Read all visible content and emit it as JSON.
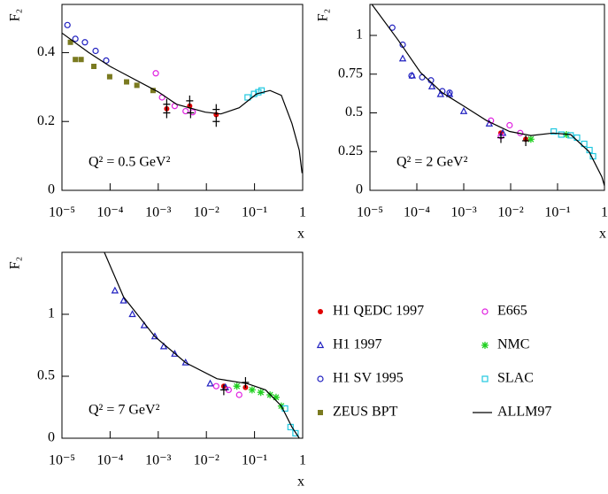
{
  "chart_data": [
    {
      "type": "scatter",
      "log_x": true,
      "xlim": [
        1e-05,
        1
      ],
      "ylim": [
        0,
        0.54
      ],
      "xticks": [
        {
          "value": 1e-05,
          "label": "10⁻⁵"
        },
        {
          "value": 0.0001,
          "label": "10⁻⁴"
        },
        {
          "value": 0.001,
          "label": "10⁻³"
        },
        {
          "value": 0.01,
          "label": "10⁻²"
        },
        {
          "value": 0.1,
          "label": "10⁻¹"
        },
        1
      ],
      "yticks": [
        0,
        0.2,
        0.4
      ],
      "x_label": "x",
      "y_label": "F₂",
      "annotation": "Q² = 0.5 GeV²",
      "series": [
        {
          "color": "#e00000",
          "marker": "circle-filled",
          "x": [
            0.0015,
            0.0045,
            0.016
          ],
          "values": [
            0.237,
            0.245,
            0.22
          ]
        },
        {
          "color": "#2020c0",
          "marker": "triangle-open",
          "x": [],
          "values": []
        },
        {
          "color": "#2020c0",
          "marker": "circle-open",
          "x": [
            1.3e-05,
            1.9e-05,
            3e-05,
            5e-05,
            8.3e-05
          ],
          "values": [
            0.48,
            0.44,
            0.43,
            0.405,
            0.377
          ]
        },
        {
          "color": "#7a7a20",
          "marker": "square-filled",
          "x": [
            1.5e-05,
            1.9e-05,
            2.5e-05,
            4.6e-05,
            9.8e-05,
            0.00022,
            0.00036,
            0.00078
          ],
          "values": [
            0.43,
            0.38,
            0.38,
            0.36,
            0.33,
            0.315,
            0.305,
            0.29
          ]
        },
        {
          "color": "#e020e0",
          "marker": "circle-open",
          "x": [
            0.00089,
            0.0012,
            0.0022,
            0.0037,
            0.0052
          ],
          "values": [
            0.34,
            0.27,
            0.245,
            0.23,
            0.227
          ]
        },
        {
          "color": "#20d020",
          "marker": "star",
          "x": [],
          "values": []
        },
        {
          "color": "#20c8e0",
          "marker": "square-open",
          "x": [
            0.072,
            0.098,
            0.12,
            0.14
          ],
          "values": [
            0.27,
            0.28,
            0.285,
            0.29
          ]
        },
        {
          "color": "#000000",
          "marker": "line",
          "x": [
            1e-05,
            3.6e-05,
            0.0001,
            0.001,
            0.0024,
            0.0095,
            0.02,
            0.048,
            0.11,
            0.21,
            0.36,
            0.6,
            0.85,
            0.97
          ],
          "values": [
            0.457,
            0.4,
            0.36,
            0.286,
            0.25,
            0.227,
            0.222,
            0.24,
            0.28,
            0.29,
            0.276,
            0.194,
            0.116,
            0.05
          ]
        },
        {
          "color": "#000000",
          "marker": "cross",
          "x": [
            0.0015,
            0.0015,
            0.0045,
            0.0047,
            0.016,
            0.016
          ],
          "values": [
            0.25,
            0.225,
            0.26,
            0.225,
            0.235,
            0.2
          ]
        }
      ]
    },
    {
      "type": "scatter",
      "log_x": true,
      "xlim": [
        1e-05,
        1
      ],
      "ylim": [
        0,
        1.2
      ],
      "xticks": [
        {
          "value": 1e-05,
          "label": "10⁻⁵"
        },
        {
          "value": 0.0001,
          "label": "10⁻⁴"
        },
        {
          "value": 0.001,
          "label": "10⁻³"
        },
        {
          "value": 0.01,
          "label": "10⁻²"
        },
        {
          "value": 0.1,
          "label": "10⁻¹"
        },
        1
      ],
      "yticks": [
        0,
        0.25,
        0.5,
        0.75,
        1
      ],
      "x_label": "x",
      "y_label": "F₂",
      "annotation": "Q² = 2 GeV²",
      "series": [
        {
          "color": "#e00000",
          "marker": "circle-filled",
          "x": [
            0.0062,
            0.021
          ],
          "values": [
            0.37,
            0.33
          ]
        },
        {
          "color": "#2020c0",
          "marker": "triangle-open",
          "x": [
            5e-05,
            8e-05,
            0.00021,
            0.00032,
            0.0005,
            0.001,
            0.0035,
            0.0068
          ],
          "values": [
            0.85,
            0.74,
            0.67,
            0.62,
            0.62,
            0.51,
            0.43,
            0.37
          ]
        },
        {
          "color": "#2020c0",
          "marker": "circle-open",
          "x": [
            3e-05,
            5e-05,
            7.7e-05,
            0.00013,
            0.0002,
            0.00035,
            0.0005
          ],
          "values": [
            1.05,
            0.94,
            0.74,
            0.73,
            0.71,
            0.64,
            0.63
          ]
        },
        {
          "color": "#7a7a20",
          "marker": "square-filled",
          "x": [],
          "values": []
        },
        {
          "color": "#e020e0",
          "marker": "circle-open",
          "x": [
            0.0038,
            0.0062,
            0.0095,
            0.016
          ],
          "values": [
            0.45,
            0.35,
            0.42,
            0.37
          ]
        },
        {
          "color": "#20d020",
          "marker": "star",
          "x": [
            0.027,
            0.155
          ],
          "values": [
            0.33,
            0.36
          ]
        },
        {
          "color": "#20c8e0",
          "marker": "square-open",
          "x": [
            0.083,
            0.12,
            0.19,
            0.26,
            0.37,
            0.48,
            0.57
          ],
          "values": [
            0.38,
            0.36,
            0.355,
            0.34,
            0.3,
            0.26,
            0.22
          ]
        },
        {
          "color": "#000000",
          "marker": "line",
          "x": [
            1.1e-05,
            4e-05,
            0.00012,
            0.00035,
            0.00105,
            0.0031,
            0.0095,
            0.027,
            0.08,
            0.19,
            0.47,
            0.88,
            1
          ],
          "values": [
            1.2,
            0.97,
            0.76,
            0.63,
            0.54,
            0.45,
            0.38,
            0.354,
            0.37,
            0.36,
            0.25,
            0.086,
            0.03
          ]
        },
        {
          "color": "#000000",
          "marker": "cross",
          "x": [
            0.0062,
            0.021
          ],
          "values": [
            0.34,
            0.32
          ]
        }
      ]
    },
    {
      "type": "scatter",
      "log_x": true,
      "xlim": [
        1e-05,
        1
      ],
      "ylim": [
        0,
        1.5
      ],
      "xticks": [
        {
          "value": 1e-05,
          "label": "10⁻⁵"
        },
        {
          "value": 0.0001,
          "label": "10⁻⁴"
        },
        {
          "value": 0.001,
          "label": "10⁻³"
        },
        {
          "value": 0.01,
          "label": "10⁻²"
        },
        {
          "value": 0.1,
          "label": "10⁻¹"
        },
        1
      ],
      "yticks": [
        0,
        0.5,
        1
      ],
      "x_label": "x",
      "y_label": "F₂",
      "annotation": "Q² = 7 GeV²",
      "series": [
        {
          "color": "#e00000",
          "marker": "circle-filled",
          "x": [
            0.023,
            0.065
          ],
          "values": [
            0.42,
            0.41
          ]
        },
        {
          "color": "#2020c0",
          "marker": "triangle-open",
          "x": [
            0.000126,
            0.00019,
            0.00029,
            0.00051,
            0.00085,
            0.0013,
            0.0022,
            0.0037,
            0.012,
            0.025
          ],
          "values": [
            1.19,
            1.11,
            1.0,
            0.91,
            0.82,
            0.74,
            0.68,
            0.61,
            0.44,
            0.41
          ]
        },
        {
          "color": "#2020c0",
          "marker": "circle-open",
          "x": [],
          "values": []
        },
        {
          "color": "#7a7a20",
          "marker": "square-filled",
          "x": [],
          "values": []
        },
        {
          "color": "#e020e0",
          "marker": "circle-open",
          "x": [
            0.016,
            0.029,
            0.048
          ],
          "values": [
            0.42,
            0.39,
            0.35
          ]
        },
        {
          "color": "#20d020",
          "marker": "star",
          "x": [
            0.043,
            0.089,
            0.135,
            0.21,
            0.28,
            0.36
          ],
          "values": [
            0.42,
            0.39,
            0.37,
            0.35,
            0.33,
            0.26
          ]
        },
        {
          "color": "#20c8e0",
          "marker": "square-open",
          "x": [
            0.43,
            0.56,
            0.71
          ],
          "values": [
            0.24,
            0.09,
            0.04
          ]
        },
        {
          "color": "#000000",
          "marker": "line",
          "x": [
            7.6e-05,
            0.00019,
            0.00085,
            0.0037,
            0.0166,
            0.072,
            0.17,
            0.36,
            0.6,
            0.85
          ],
          "values": [
            1.5,
            1.14,
            0.82,
            0.61,
            0.48,
            0.44,
            0.39,
            0.26,
            0.09,
            0
          ]
        },
        {
          "color": "#000000",
          "marker": "cross",
          "x": [
            0.023,
            0.065
          ],
          "values": [
            0.39,
            0.45
          ]
        }
      ]
    }
  ],
  "legend": [
    {
      "name": "H1 QEDC 1997",
      "color": "#e00000",
      "marker": "circle-filled"
    },
    {
      "name": "H1 1997",
      "color": "#2020c0",
      "marker": "triangle-open"
    },
    {
      "name": "H1 SV 1995",
      "color": "#2020c0",
      "marker": "circle-open"
    },
    {
      "name": "ZEUS BPT",
      "color": "#7a7a20",
      "marker": "square-filled"
    },
    {
      "name": "E665",
      "color": "#e020e0",
      "marker": "circle-open"
    },
    {
      "name": "NMC",
      "color": "#20d020",
      "marker": "star"
    },
    {
      "name": "SLAC",
      "color": "#20c8e0",
      "marker": "square-open"
    },
    {
      "name": "ALLM97",
      "color": "#000000",
      "marker": "line"
    }
  ]
}
